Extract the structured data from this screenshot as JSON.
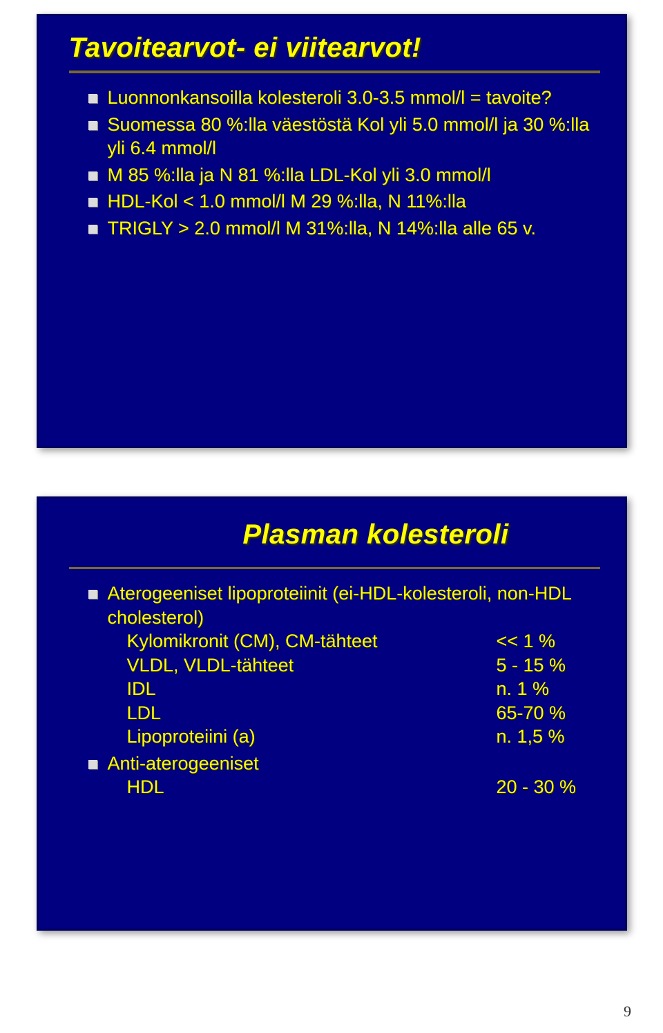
{
  "page_number": "9",
  "colors": {
    "slide_bg": "#000080",
    "title_color": "#ffff00",
    "body_color": "#ffff00",
    "underline_color": "#7a6a2a",
    "bullet_color": "#dcdcdc",
    "page_bg": "#ffffff"
  },
  "slide1": {
    "title": "Tavoitearvot- ei viitearvot!",
    "items": [
      "Luonnonkansoilla kolesteroli 3.0-3.5 mmol/l = tavoite?",
      "Suomessa 80 %:lla väestöstä Kol yli 5.0 mmol/l ja 30 %:lla yli 6.4 mmol/l",
      "M 85 %:lla ja N 81 %:lla LDL-Kol yli 3.0 mmol/l",
      "HDL-Kol < 1.0 mmol/l M 29 %:lla, N 11%:lla",
      "TRIGLY > 2.0 mmol/l M 31%:lla, N 14%:lla alle 65 v."
    ]
  },
  "slide2": {
    "title": "Plasman kolesteroli",
    "group1": {
      "header": "Aterogeeniset lipoproteiinit (ei-HDL-kolesteroli, non-HDL cholesterol)",
      "rows": [
        {
          "label": "Kylomikronit (CM), CM-tähteet",
          "value": "<< 1 %"
        },
        {
          "label": "VLDL, VLDL-tähteet",
          "value": "5 - 15 %"
        },
        {
          "label": "IDL",
          "value": "n. 1 %"
        },
        {
          "label": "LDL",
          "value": "65-70 %"
        },
        {
          "label": "Lipoproteiini (a)",
          "value": "n. 1,5 %"
        }
      ]
    },
    "group2": {
      "header": "Anti-aterogeeniset",
      "rows": [
        {
          "label": "HDL",
          "value": "20 - 30 %"
        }
      ]
    }
  }
}
